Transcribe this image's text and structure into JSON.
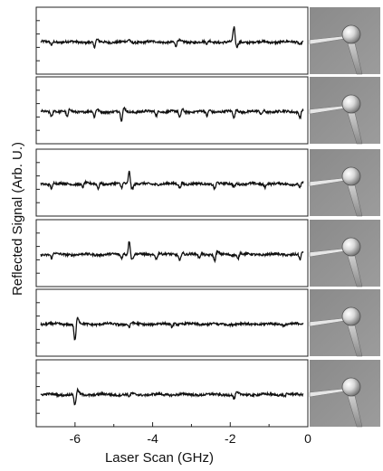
{
  "chart_data": {
    "type": "line",
    "xlabel": "Laser Scan (GHz)",
    "ylabel": "Reflected Signal (Arb. U.)",
    "xlim": [
      -7,
      0
    ],
    "xticks": [
      -6,
      -4,
      -2,
      0
    ],
    "xtick_labels": [
      "-6",
      "-4",
      "-2",
      "0"
    ],
    "grid": false,
    "panels": [
      {
        "features": [
          {
            "x": -6.6,
            "d": -0.6
          },
          {
            "x": -5.5,
            "d": -1.2
          },
          {
            "x": -4.6,
            "d": 0.5
          },
          {
            "x": -3.4,
            "d": -1.0
          },
          {
            "x": -2.6,
            "d": -0.5
          },
          {
            "x": -1.9,
            "d": 3.2
          },
          {
            "x": -0.2,
            "d": -0.5
          }
        ]
      },
      {
        "features": [
          {
            "x": -6.6,
            "d": -1.0
          },
          {
            "x": -6.2,
            "d": -1.3
          },
          {
            "x": -5.5,
            "d": -1.3
          },
          {
            "x": -4.8,
            "d": -2.0
          },
          {
            "x": -3.9,
            "d": -0.8
          },
          {
            "x": -3.3,
            "d": -1.4
          },
          {
            "x": -2.6,
            "d": -1.0
          },
          {
            "x": -1.9,
            "d": -1.4
          },
          {
            "x": -1.2,
            "d": -0.7
          },
          {
            "x": -0.2,
            "d": -1.2
          }
        ]
      },
      {
        "features": [
          {
            "x": -6.6,
            "d": -0.9
          },
          {
            "x": -5.8,
            "d": -0.7
          },
          {
            "x": -5.4,
            "d": -0.9
          },
          {
            "x": -4.8,
            "d": -0.8
          },
          {
            "x": -4.6,
            "d": 2.8
          },
          {
            "x": -3.3,
            "d": -0.8
          },
          {
            "x": -2.4,
            "d": -1.0
          },
          {
            "x": -1.9,
            "d": -0.6
          },
          {
            "x": -1.1,
            "d": -0.6
          },
          {
            "x": -0.2,
            "d": -0.8
          }
        ]
      },
      {
        "features": [
          {
            "x": -6.6,
            "d": -0.8
          },
          {
            "x": -4.8,
            "d": -0.7
          },
          {
            "x": -4.6,
            "d": 3.0
          },
          {
            "x": -3.9,
            "d": -0.9
          },
          {
            "x": -3.3,
            "d": -1.3
          },
          {
            "x": -2.8,
            "d": -0.8
          },
          {
            "x": -2.4,
            "d": -1.4
          },
          {
            "x": -1.8,
            "d": -0.9
          },
          {
            "x": -0.2,
            "d": -1.2
          }
        ]
      },
      {
        "features": [
          {
            "x": -6.0,
            "d": -3.6
          },
          {
            "x": -4.6,
            "d": -0.7
          },
          {
            "x": -3.5,
            "d": -0.5
          },
          {
            "x": -2.3,
            "d": -0.3
          },
          {
            "x": -0.6,
            "d": -0.3
          }
        ]
      },
      {
        "features": [
          {
            "x": -6.0,
            "d": -2.4
          },
          {
            "x": -4.6,
            "d": -0.5
          },
          {
            "x": -1.9,
            "d": -1.0
          },
          {
            "x": -0.6,
            "d": -0.3
          }
        ]
      }
    ]
  }
}
